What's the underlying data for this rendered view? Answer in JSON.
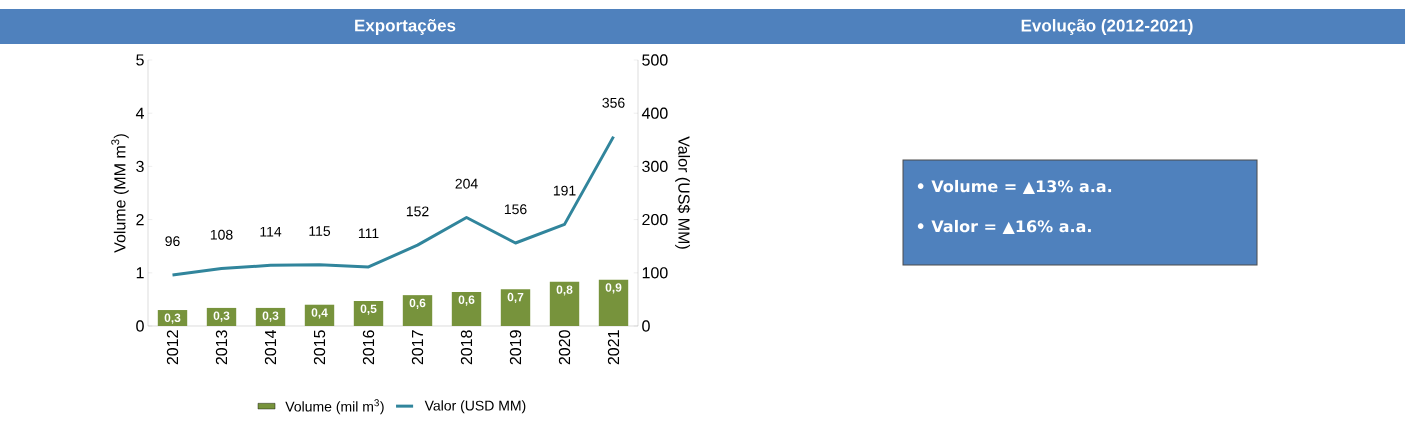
{
  "chart_data": [
    {
      "type": "bar",
      "title": "Exportações",
      "categories": [
        "2012",
        "2013",
        "2014",
        "2015",
        "2016",
        "2017",
        "2018",
        "2019",
        "2020",
        "2021"
      ],
      "series": [
        {
          "name": "Volume (mil m$^{3}$)",
          "type": "bar",
          "color": "#77933c",
          "values": [
            0.3,
            0.34,
            0.34,
            0.4,
            0.47,
            0.58,
            0.64,
            0.69,
            0.83,
            0.87
          ],
          "value_labels": [
            "0,3",
            "0,3",
            "0,3",
            "0,4",
            "0,5",
            "0,6",
            "0,6",
            "0,7",
            "0,8",
            "0,9"
          ]
        },
        {
          "name": "Valor (USD MM)",
          "type": "line",
          "axis": "y2",
          "color": "#31859c",
          "values": [
            96,
            108,
            114,
            115,
            111,
            152,
            204,
            156,
            191,
            356
          ],
          "value_labels": [
            "96",
            "108",
            "114",
            "115",
            "111",
            "152",
            "204",
            "156",
            "191",
            "356"
          ]
        }
      ],
      "ylabel": "Volume (MM m$^{3}$)",
      "y2label": "Valor (US$ MM)",
      "ylim": [
        0,
        5
      ],
      "yticks": [
        0,
        1,
        2,
        3,
        4,
        5
      ],
      "y2lim": [
        0,
        500
      ],
      "y2ticks": [
        0,
        100,
        200,
        300,
        400,
        500
      ],
      "legend": "bottom",
      "grid": false
    },
    {
      "type": "other",
      "title": "Evolução (2012-2021)",
      "annotations": [
        "• Volume = ▲13% a.a.",
        "• Valor = ▲16% a.a."
      ]
    }
  ]
}
